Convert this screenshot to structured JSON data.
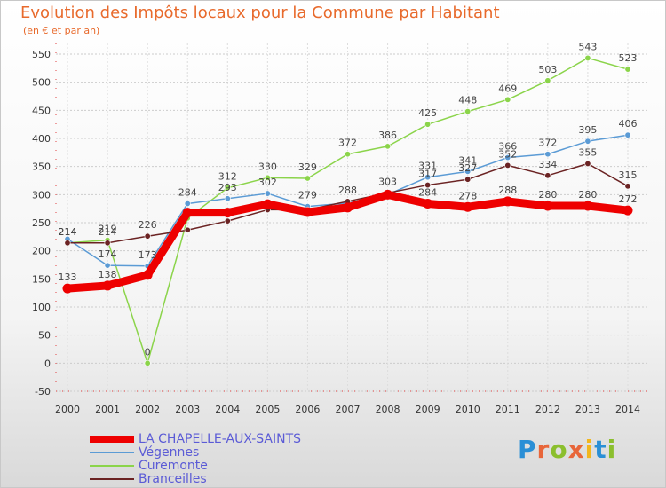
{
  "title": "Evolution des Impôts locaux pour la Commune par Habitant",
  "subtitle": "(en € et par an)",
  "logo": "Proxiti",
  "chart_data": {
    "type": "line",
    "title": "Evolution des Impôts locaux pour la Commune par Habitant",
    "subtitle": "(en € et par an)",
    "x": [
      2000,
      2001,
      2002,
      2003,
      2004,
      2005,
      2006,
      2007,
      2008,
      2009,
      2010,
      2011,
      2012,
      2013,
      2014
    ],
    "ylim": [
      -50,
      550
    ],
    "yticks": [
      -50,
      0,
      50,
      100,
      150,
      200,
      250,
      300,
      350,
      400,
      450,
      500,
      550
    ],
    "grid": true,
    "legend_position": "bottom-left",
    "series": [
      {
        "name": "LA CHAPELLE-AUX-SAINTS",
        "color": "#ee0000",
        "values": [
          133,
          138,
          157,
          268,
          268,
          283,
          269,
          277,
          300,
          284,
          278,
          288,
          280,
          280,
          272
        ],
        "labels": [
          "133",
          "138",
          "",
          "",
          "",
          "",
          "",
          "",
          "",
          "284",
          "278",
          "288",
          "280",
          "280",
          "272"
        ]
      },
      {
        "name": "Végennes",
        "color": "#5b9bd5",
        "values": [
          221,
          174,
          173,
          284,
          293,
          302,
          279,
          285,
          300,
          331,
          341,
          366,
          372,
          395,
          406
        ],
        "labels": [
          "",
          "174",
          "173",
          "284",
          "293",
          "302",
          "279",
          "",
          "",
          "331",
          "341",
          "366",
          "372",
          "395",
          "406"
        ]
      },
      {
        "name": "Curemonte",
        "color": "#8bd44a",
        "values": [
          214,
          219,
          0,
          258,
          312,
          330,
          329,
          372,
          386,
          425,
          448,
          469,
          503,
          543,
          523
        ],
        "labels": [
          "214",
          "219",
          "0",
          "",
          "312",
          "330",
          "329",
          "372",
          "386",
          "425",
          "448",
          "469",
          "503",
          "543",
          "523"
        ]
      },
      {
        "name": "Branceilles",
        "color": "#6b2323",
        "values": [
          214,
          214,
          226,
          237,
          253,
          273,
          273,
          288,
          303,
          317,
          327,
          352,
          334,
          355,
          315
        ],
        "labels": [
          "214",
          "214",
          "226",
          "",
          "",
          "",
          "",
          "288",
          "303",
          "317",
          "327",
          "352",
          "334",
          "355",
          "315"
        ]
      }
    ]
  }
}
